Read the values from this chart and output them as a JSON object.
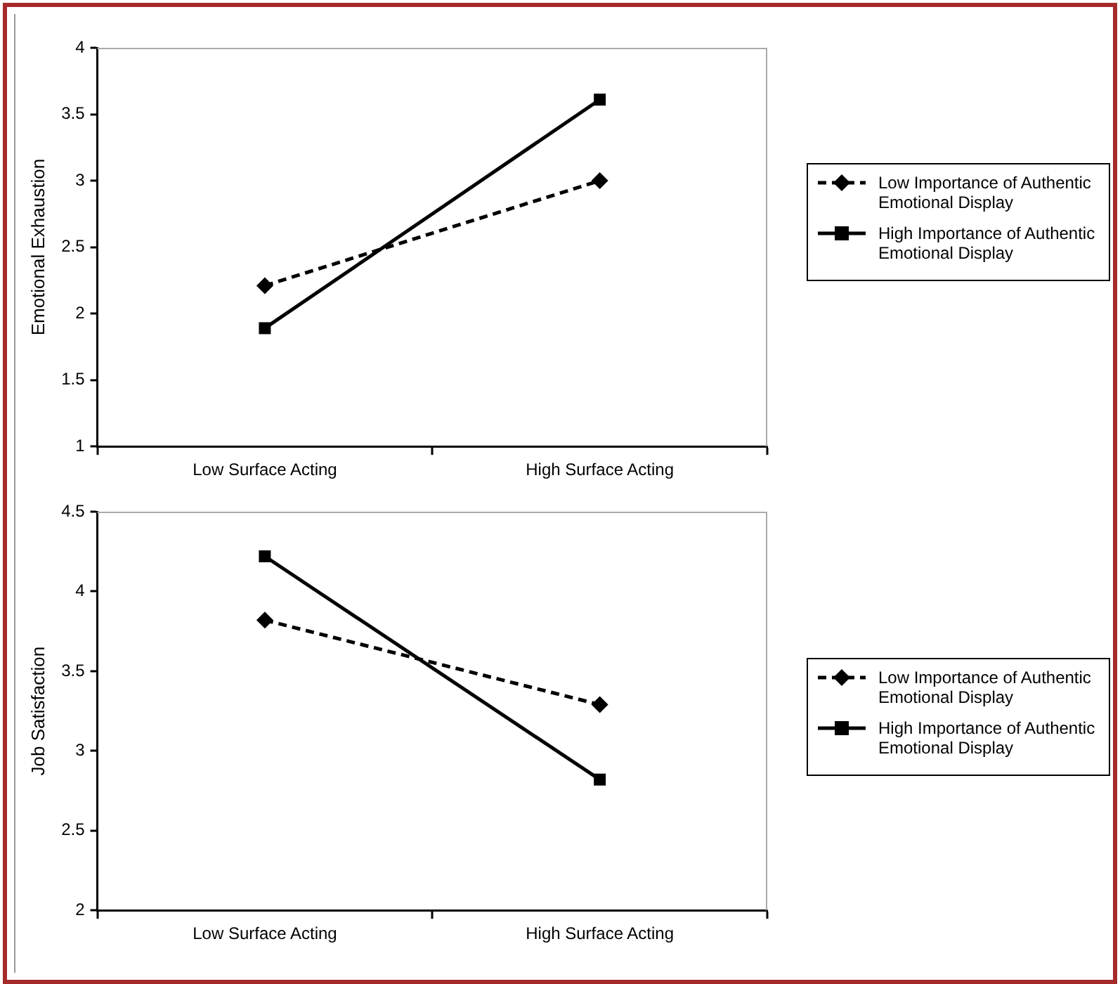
{
  "chart_data": [
    {
      "type": "line",
      "ylabel": "Emotional Exhaustion",
      "categories": [
        "Low Surface Acting",
        "High Surface Acting"
      ],
      "ylim": [
        1,
        4
      ],
      "yticks": [
        1,
        1.5,
        2,
        2.5,
        3,
        3.5,
        4
      ],
      "grid": false,
      "legend": "right",
      "series": [
        {
          "name": "Low Importance of Authentic Emotional Display",
          "color": "#000000",
          "marker": "diamond",
          "line_style": "dashed",
          "values": [
            2.21,
            3.0
          ]
        },
        {
          "name": "High Importance of Authentic Emotional Display",
          "color": "#000000",
          "marker": "square",
          "line_style": "solid",
          "values": [
            1.89,
            3.61
          ]
        }
      ]
    },
    {
      "type": "line",
      "ylabel": "Job Satisfaction",
      "categories": [
        "Low Surface Acting",
        "High Surface Acting"
      ],
      "ylim": [
        2,
        4.5
      ],
      "yticks": [
        2,
        2.5,
        3,
        3.5,
        4,
        4.5
      ],
      "grid": false,
      "legend": "right",
      "series": [
        {
          "name": "Low Importance of Authentic Emotional Display",
          "color": "#000000",
          "marker": "diamond",
          "line_style": "dashed",
          "values": [
            3.82,
            3.29
          ]
        },
        {
          "name": "High Importance of Authentic Emotional Display",
          "color": "#000000",
          "marker": "square",
          "line_style": "solid",
          "values": [
            4.22,
            2.82
          ]
        }
      ]
    }
  ]
}
